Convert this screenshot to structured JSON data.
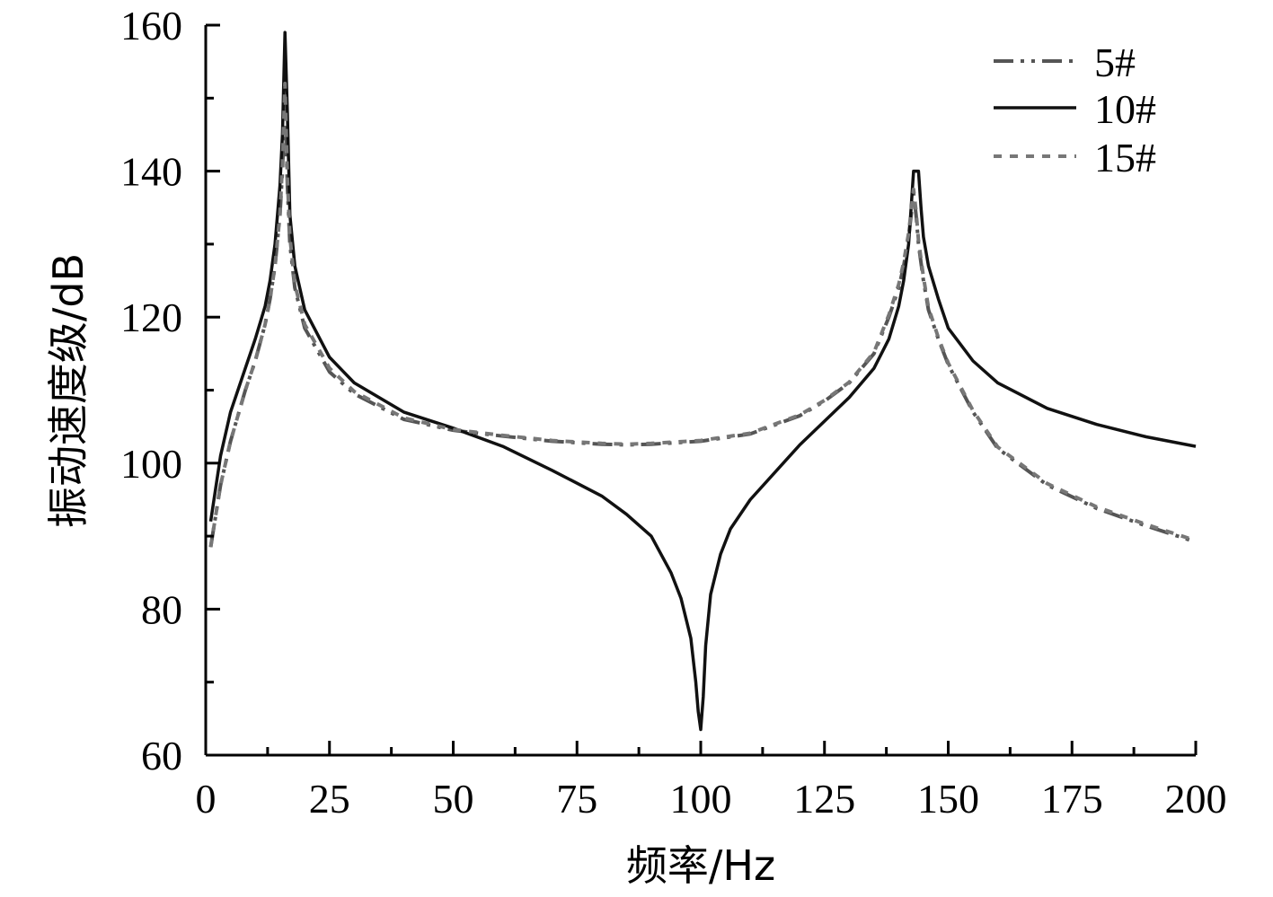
{
  "chart_data": {
    "type": "line",
    "title": "",
    "xlabel": "频率/Hz",
    "ylabel": "振动速度级/dB",
    "xlim": [
      0,
      200
    ],
    "ylim": [
      60,
      160
    ],
    "xticks": [
      0,
      25,
      50,
      75,
      100,
      125,
      150,
      175,
      200
    ],
    "xtick_labels": [
      "0",
      "25",
      "50",
      "75",
      "100",
      "125",
      "150",
      "175",
      "200"
    ],
    "yticks": [
      60,
      80,
      100,
      120,
      140,
      160
    ],
    "ytick_labels": [
      "60",
      "80",
      "100",
      "120",
      "140",
      "160"
    ],
    "grid": false,
    "legend_position": "top-right",
    "series": [
      {
        "name": "5#",
        "style": "dash-dot-dot",
        "color": "#555555",
        "x": [
          1,
          3,
          5,
          8,
          10,
          12,
          13,
          14,
          15,
          15.5,
          16,
          16.5,
          17,
          18,
          20,
          25,
          30,
          40,
          50,
          60,
          70,
          80,
          85,
          90,
          100,
          110,
          120,
          125,
          130,
          135,
          138,
          140,
          141,
          142,
          142.5,
          143,
          143.5,
          144,
          145,
          146,
          148,
          150,
          155,
          160,
          170,
          180,
          190,
          200
        ],
        "y": [
          88.5,
          97,
          103,
          110,
          114,
          119,
          122.5,
          127,
          134,
          140,
          150,
          138,
          130,
          124,
          118.5,
          112.5,
          109.5,
          106,
          104.5,
          103.7,
          103,
          102.6,
          102.5,
          102.6,
          103,
          104,
          106.5,
          108.5,
          111,
          115,
          120,
          124,
          127,
          131,
          134,
          137,
          134,
          130,
          125,
          121,
          117,
          113.5,
          107,
          102,
          97,
          93.8,
          91.4,
          89.2
        ]
      },
      {
        "name": "10#",
        "style": "solid",
        "color": "#111111",
        "x": [
          1,
          3,
          5,
          8,
          10,
          12,
          13,
          14,
          15,
          15.5,
          16,
          16.5,
          17,
          18,
          20,
          25,
          30,
          40,
          50,
          60,
          70,
          80,
          85,
          90,
          94,
          96,
          98,
          99,
          99.5,
          100,
          100.5,
          101,
          102,
          104,
          106,
          110,
          120,
          130,
          135,
          138,
          140,
          141,
          142,
          142.5,
          143,
          144,
          144.5,
          145,
          146,
          148,
          150,
          155,
          160,
          170,
          180,
          190,
          200
        ],
        "y": [
          92,
          101,
          107,
          113,
          117,
          121.5,
          125,
          130,
          138,
          145,
          159,
          148,
          134,
          127,
          121,
          114.5,
          111,
          107,
          104.8,
          102.3,
          99,
          95.5,
          93,
          90,
          85,
          81.5,
          76,
          70,
          66,
          63.5,
          68,
          75,
          82,
          87.5,
          91,
          95,
          102.5,
          109,
          113,
          117,
          121.5,
          125,
          130,
          135,
          140,
          140,
          135,
          131,
          127,
          122.5,
          118.5,
          114,
          111,
          107.5,
          105.3,
          103.6,
          102.3
        ]
      },
      {
        "name": "15#",
        "style": "dotted",
        "color": "#777777",
        "x": [
          1,
          3,
          5,
          8,
          10,
          12,
          13,
          14,
          15,
          15.5,
          16,
          16.5,
          17,
          18,
          20,
          25,
          30,
          40,
          50,
          60,
          70,
          80,
          85,
          90,
          100,
          110,
          120,
          125,
          130,
          135,
          138,
          140,
          141,
          142,
          142.5,
          143,
          143.5,
          144,
          145,
          146,
          148,
          150,
          155,
          160,
          170,
          180,
          190,
          200
        ],
        "y": [
          88.5,
          97,
          103,
          110,
          114,
          119,
          122.5,
          127,
          134,
          141,
          152,
          139,
          131,
          124.5,
          119,
          113,
          109.8,
          106.2,
          104.6,
          103.8,
          103.1,
          102.7,
          102.6,
          102.7,
          103.1,
          104.1,
          106.6,
          108.6,
          111.1,
          115.2,
          120.3,
          124.5,
          127.5,
          131.5,
          134.5,
          137.5,
          134.5,
          130.5,
          125.5,
          121.3,
          117.2,
          113.7,
          107.2,
          102.2,
          97.2,
          94,
          91.6,
          89.4
        ]
      }
    ]
  }
}
